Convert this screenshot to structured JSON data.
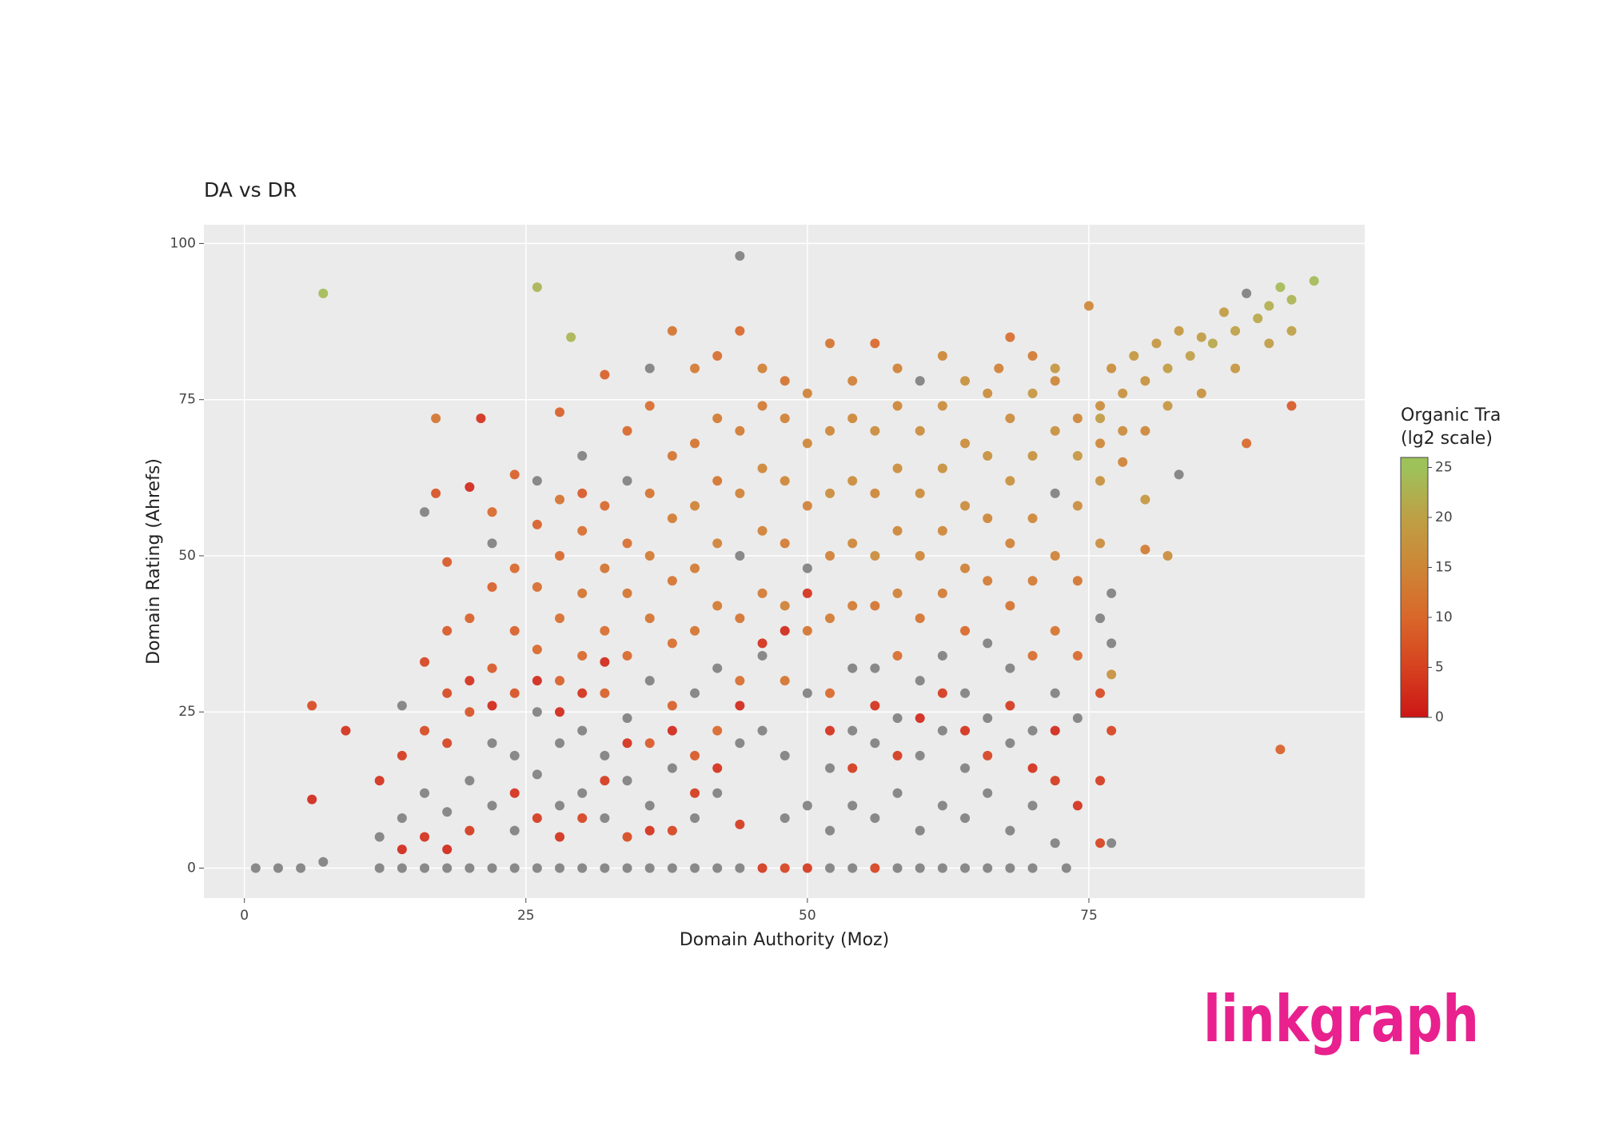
{
  "chart_data": {
    "type": "scatter",
    "title": "DA vs DR",
    "x_label": "Domain Authority (Moz)",
    "y_label": "Domain Rating (Ahrefs)",
    "xlim": [
      -3.6,
      99.5
    ],
    "ylim": [
      -4.8,
      103
    ],
    "xticks": [
      0,
      25,
      50,
      75
    ],
    "yticks": [
      0,
      25,
      50,
      75,
      100
    ],
    "grid": true,
    "null_color": "#808080",
    "colorbar": {
      "title": "Organic Tra",
      "subtitle": "(lg2 scale)",
      "lim": [
        0,
        26
      ],
      "ticks": [
        0,
        5,
        10,
        15,
        20,
        25
      ],
      "stops": [
        {
          "value": 0,
          "color": "#cc1616"
        },
        {
          "value": 5,
          "color": "#d6421f"
        },
        {
          "value": 10,
          "color": "#d9672a"
        },
        {
          "value": 15,
          "color": "#cd8636"
        },
        {
          "value": 20,
          "color": "#bea045"
        },
        {
          "value": 25,
          "color": "#9dc25a"
        }
      ]
    },
    "x": [
      7,
      26,
      29,
      44,
      92,
      93,
      89,
      1,
      3,
      5,
      7,
      6,
      9,
      6,
      17,
      21,
      20,
      16,
      18,
      17,
      95,
      93,
      92,
      91,
      90,
      89,
      88,
      87,
      86,
      85,
      84,
      83,
      82,
      81,
      80,
      79,
      78,
      77,
      76,
      75,
      93,
      91,
      88,
      85,
      82,
      80,
      78,
      76,
      74,
      83,
      80,
      78,
      82,
      80,
      77,
      72,
      70,
      68,
      67,
      12,
      12,
      12,
      14,
      14,
      14,
      14,
      14,
      16,
      16,
      16,
      16,
      16,
      18,
      18,
      18,
      18,
      18,
      18,
      20,
      20,
      20,
      20,
      20,
      20,
      22,
      22,
      22,
      22,
      22,
      22,
      22,
      22,
      24,
      24,
      24,
      24,
      24,
      24,
      24,
      24,
      26,
      26,
      26,
      26,
      26,
      26,
      26,
      26,
      26,
      28,
      28,
      28,
      28,
      28,
      28,
      28,
      28,
      28,
      28,
      30,
      30,
      30,
      30,
      30,
      30,
      30,
      30,
      30,
      30,
      32,
      32,
      32,
      32,
      32,
      32,
      32,
      32,
      32,
      32,
      34,
      34,
      34,
      34,
      34,
      34,
      34,
      34,
      34,
      34,
      36,
      36,
      36,
      36,
      36,
      36,
      36,
      36,
      36,
      36,
      38,
      38,
      38,
      38,
      38,
      38,
      38,
      38,
      38,
      38,
      40,
      40,
      40,
      40,
      40,
      40,
      40,
      40,
      40,
      40,
      42,
      42,
      42,
      42,
      42,
      42,
      42,
      42,
      42,
      42,
      44,
      44,
      44,
      44,
      44,
      44,
      44,
      44,
      44,
      44,
      46,
      46,
      46,
      46,
      46,
      46,
      46,
      46,
      46,
      48,
      48,
      48,
      48,
      48,
      48,
      48,
      48,
      48,
      48,
      50,
      50,
      50,
      50,
      50,
      50,
      50,
      50,
      50,
      52,
      52,
      52,
      52,
      52,
      52,
      52,
      52,
      52,
      52,
      54,
      54,
      54,
      54,
      54,
      54,
      54,
      54,
      54,
      54,
      56,
      56,
      56,
      56,
      56,
      56,
      56,
      56,
      56,
      56,
      58,
      58,
      58,
      58,
      58,
      58,
      58,
      58,
      58,
      58,
      60,
      60,
      60,
      60,
      60,
      60,
      60,
      60,
      60,
      60,
      62,
      62,
      62,
      62,
      62,
      62,
      62,
      62,
      62,
      62,
      64,
      64,
      64,
      64,
      64,
      64,
      64,
      64,
      64,
      64,
      66,
      66,
      66,
      66,
      66,
      66,
      66,
      66,
      66,
      68,
      68,
      68,
      68,
      68,
      68,
      68,
      68,
      68,
      70,
      70,
      70,
      70,
      70,
      70,
      70,
      70,
      70,
      72,
      72,
      72,
      72,
      72,
      72,
      72,
      72,
      72,
      73,
      74,
      74,
      74,
      74,
      74,
      74,
      76,
      76,
      76,
      76,
      76,
      76,
      76,
      77,
      77,
      77,
      77
    ],
    "values": [
      92,
      93,
      85,
      98,
      19,
      74,
      68,
      0,
      0,
      0,
      1,
      26,
      22,
      11,
      72,
      72,
      61,
      57,
      49,
      60,
      94,
      91,
      93,
      90,
      88,
      92,
      86,
      89,
      84,
      85,
      82,
      86,
      80,
      84,
      78,
      82,
      76,
      80,
      74,
      90,
      86,
      84,
      80,
      76,
      74,
      70,
      70,
      68,
      72,
      63,
      59,
      65,
      50,
      51,
      31,
      78,
      82,
      85,
      80,
      0,
      5,
      14,
      0,
      8,
      26,
      18,
      3,
      0,
      12,
      22,
      33,
      5,
      0,
      9,
      20,
      38,
      28,
      3,
      0,
      14,
      25,
      40,
      30,
      6,
      0,
      10,
      20,
      32,
      45,
      52,
      26,
      57,
      0,
      6,
      18,
      28,
      38,
      48,
      63,
      12,
      0,
      15,
      25,
      35,
      45,
      55,
      62,
      8,
      30,
      0,
      10,
      20,
      30,
      40,
      50,
      59,
      73,
      5,
      25,
      0,
      12,
      22,
      34,
      44,
      54,
      66,
      8,
      28,
      60,
      0,
      8,
      18,
      28,
      38,
      48,
      58,
      79,
      14,
      33,
      0,
      14,
      24,
      34,
      44,
      52,
      62,
      70,
      5,
      20,
      0,
      10,
      20,
      30,
      40,
      50,
      60,
      74,
      80,
      6,
      0,
      6,
      16,
      26,
      36,
      46,
      56,
      66,
      86,
      22,
      0,
      8,
      18,
      28,
      38,
      48,
      58,
      68,
      80,
      12,
      0,
      12,
      22,
      32,
      42,
      52,
      62,
      72,
      82,
      16,
      0,
      7,
      20,
      30,
      40,
      50,
      60,
      70,
      86,
      26,
      0,
      22,
      34,
      44,
      54,
      64,
      74,
      80,
      36,
      0,
      8,
      18,
      30,
      42,
      52,
      62,
      72,
      78,
      38,
      0,
      10,
      28,
      38,
      48,
      58,
      68,
      76,
      44,
      0,
      6,
      16,
      28,
      40,
      50,
      60,
      70,
      84,
      22,
      0,
      10,
      22,
      32,
      42,
      52,
      62,
      72,
      78,
      16,
      0,
      8,
      20,
      32,
      42,
      50,
      60,
      70,
      84,
      26,
      0,
      12,
      24,
      34,
      44,
      54,
      64,
      74,
      80,
      18,
      0,
      6,
      18,
      30,
      40,
      50,
      60,
      70,
      78,
      24,
      0,
      10,
      22,
      34,
      44,
      54,
      64,
      74,
      82,
      28,
      0,
      8,
      16,
      28,
      38,
      48,
      58,
      68,
      78,
      22,
      0,
      12,
      24,
      36,
      46,
      56,
      66,
      76,
      18,
      0,
      6,
      20,
      32,
      42,
      52,
      62,
      72,
      26,
      0,
      10,
      22,
      34,
      46,
      56,
      66,
      76,
      16,
      4,
      14,
      28,
      38,
      50,
      60,
      70,
      80,
      22,
      0,
      10,
      24,
      34,
      46,
      58,
      66,
      4,
      14,
      28,
      40,
      52,
      62,
      72,
      4,
      22,
      36,
      44
    ],
    "color_values": [
      24,
      23,
      23,
      null,
      9,
      8,
      10,
      null,
      null,
      null,
      null,
      6,
      3,
      2,
      12,
      3,
      2,
      null,
      8,
      7,
      24,
      23,
      24,
      22,
      21,
      null,
      20,
      19,
      21,
      19,
      20,
      18,
      19,
      18,
      17,
      18,
      17,
      16,
      16,
      15,
      20,
      19,
      18,
      17,
      18,
      15,
      16,
      15,
      15,
      null,
      18,
      14,
      16,
      13,
      17,
      15,
      13,
      11,
      14,
      null,
      null,
      3,
      null,
      null,
      null,
      4,
      2,
      null,
      null,
      6,
      5,
      3,
      null,
      null,
      5,
      8,
      6,
      2,
      null,
      null,
      7,
      9,
      3,
      4,
      null,
      null,
      null,
      8,
      9,
      null,
      2,
      10,
      null,
      null,
      null,
      7,
      9,
      10,
      9,
      3,
      null,
      null,
      null,
      10,
      11,
      9,
      null,
      4,
      2,
      null,
      null,
      null,
      9,
      11,
      10,
      12,
      9,
      3,
      2,
      null,
      null,
      null,
      10,
      12,
      11,
      null,
      5,
      3,
      8,
      null,
      null,
      null,
      9,
      11,
      12,
      10,
      9,
      4,
      2,
      null,
      null,
      null,
      10,
      12,
      11,
      null,
      10,
      6,
      3,
      null,
      null,
      8,
      null,
      12,
      13,
      12,
      11,
      null,
      3,
      null,
      5,
      null,
      9,
      11,
      12,
      13,
      12,
      12,
      2,
      null,
      null,
      8,
      null,
      12,
      13,
      14,
      12,
      13,
      4,
      null,
      null,
      10,
      null,
      13,
      14,
      12,
      13,
      11,
      3,
      null,
      4,
      null,
      11,
      12,
      null,
      14,
      13,
      10,
      2,
      4,
      null,
      null,
      13,
      14,
      15,
      13,
      14,
      3,
      5,
      null,
      null,
      12,
      14,
      13,
      15,
      14,
      12,
      2,
      4,
      null,
      null,
      12,
      null,
      14,
      15,
      14,
      3,
      null,
      null,
      null,
      10,
      13,
      14,
      16,
      15,
      12,
      3,
      null,
      null,
      null,
      null,
      13,
      15,
      16,
      15,
      14,
      4,
      5,
      null,
      null,
      null,
      12,
      16,
      15,
      16,
      10,
      3,
      null,
      null,
      null,
      11,
      14,
      15,
      16,
      15,
      14,
      4,
      null,
      null,
      null,
      null,
      12,
      15,
      16,
      16,
      null,
      2,
      null,
      null,
      null,
      null,
      13,
      15,
      17,
      16,
      15,
      4,
      null,
      null,
      null,
      null,
      10,
      14,
      16,
      16,
      17,
      3,
      null,
      null,
      null,
      null,
      13,
      15,
      17,
      16,
      5,
      null,
      null,
      null,
      null,
      12,
      14,
      17,
      16,
      4,
      null,
      null,
      null,
      11,
      13,
      15,
      17,
      18,
      3,
      null,
      4,
      null,
      12,
      14,
      null,
      17,
      18,
      2,
      null,
      3,
      null,
      10,
      12,
      16,
      18,
      5,
      4,
      6,
      null,
      16,
      17,
      19,
      null,
      5,
      null,
      null
    ]
  },
  "logo": "linkgraph"
}
